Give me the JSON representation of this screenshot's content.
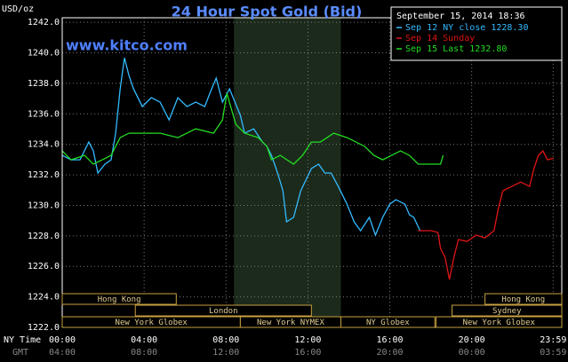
{
  "chart_data": {
    "type": "line",
    "title": "24 Hour Spot Gold (Bid)",
    "y_unit": "USD/oz",
    "watermark": "www.kitco.com",
    "timestamp": "September 15, 2014 18:36",
    "x_axis_label": "NY Time",
    "x2_axis_label": "GMT",
    "xlim": [
      0,
      24.4
    ],
    "ylim": [
      1222,
      1242.3
    ],
    "xticks": [
      {
        "value": 0,
        "label": "00:00"
      },
      {
        "value": 4,
        "label": "04:00"
      },
      {
        "value": 8,
        "label": "08:00"
      },
      {
        "value": 12,
        "label": "12:00"
      },
      {
        "value": 16,
        "label": "16:00"
      },
      {
        "value": 20,
        "label": "20:00"
      },
      {
        "value": 23.98,
        "label": "23:59"
      }
    ],
    "x2ticks": [
      "04:00",
      "08:00",
      "12:00",
      "16:00",
      "20:00",
      "00:00",
      "03:59"
    ],
    "yticks": [
      {
        "value": 1222,
        "label": "1222.0"
      },
      {
        "value": 1224,
        "label": "1224.0"
      },
      {
        "value": 1226,
        "label": "1226.0"
      },
      {
        "value": 1228,
        "label": "1228.0"
      },
      {
        "value": 1230,
        "label": "1230.0"
      },
      {
        "value": 1232,
        "label": "1232.0"
      },
      {
        "value": 1234,
        "label": "1234.0"
      },
      {
        "value": 1236,
        "label": "1236.0"
      },
      {
        "value": 1238,
        "label": "1238.0"
      },
      {
        "value": 1240,
        "label": "1240.0"
      },
      {
        "value": 1242,
        "label": "1242.0"
      }
    ],
    "grid": true,
    "shade": [
      8.39,
      13.61
    ],
    "sessions": [
      [
        {
          "label": "Hong Kong",
          "start": 0,
          "end": 5.57
        },
        {
          "label": "Hong Kong",
          "start": 20.65,
          "end": 24.4
        }
      ],
      [
        {
          "label": "London",
          "start": 3.57,
          "end": 12.17
        },
        {
          "label": "Sydney",
          "start": 19.04,
          "end": 24.4
        }
      ],
      [
        {
          "label": "New York Globex",
          "start": 0,
          "end": 8.7
        },
        {
          "label": "New York NYMEX",
          "start": 8.7,
          "end": 13.61
        },
        {
          "label": "NY Globex",
          "start": 13.61,
          "end": 18.2
        },
        {
          "label": "New York Globex",
          "start": 18.26,
          "end": 24.4
        }
      ]
    ],
    "series": [
      {
        "name": "Sep 12 NY close 1228.30",
        "color": "#33bbff",
        "x": [
          0,
          0.43,
          0.87,
          1.3,
          1.52,
          1.74,
          2.09,
          2.39,
          2.61,
          2.83,
          3.04,
          3.26,
          3.48,
          3.91,
          4.35,
          4.78,
          5.22,
          5.65,
          6.09,
          6.52,
          6.96,
          7.3,
          7.52,
          7.83,
          8.17,
          8.35,
          8.7,
          8.91,
          9.35,
          9.78,
          10.0,
          10.22,
          10.52,
          10.78,
          10.96,
          11.3,
          11.65,
          11.96,
          12.17,
          12.52,
          12.83,
          13.13,
          13.48,
          13.91,
          14.26,
          14.57,
          15.0,
          15.3,
          15.65,
          16.0,
          16.3,
          16.74,
          16.96,
          17.17,
          17.48
        ],
        "values": [
          1233.28,
          1232.99,
          1232.99,
          1234.15,
          1233.57,
          1232.12,
          1232.7,
          1232.99,
          1234.73,
          1237.64,
          1239.67,
          1238.51,
          1237.64,
          1236.48,
          1237.06,
          1236.77,
          1235.6,
          1237.06,
          1236.48,
          1236.77,
          1236.48,
          1237.64,
          1238.34,
          1236.77,
          1237.64,
          1237.06,
          1235.9,
          1234.73,
          1235.02,
          1234.15,
          1233.86,
          1233.28,
          1232.12,
          1230.95,
          1228.92,
          1229.21,
          1230.95,
          1231.83,
          1232.41,
          1232.7,
          1232.12,
          1232.12,
          1231.24,
          1230.08,
          1228.92,
          1228.34,
          1229.21,
          1228.05,
          1229.21,
          1230.08,
          1230.37,
          1230.08,
          1229.38,
          1229.21,
          1228.34
        ]
      },
      {
        "name": "Sep 14 Sunday",
        "color": "#e01515",
        "x": [
          17.39,
          18.04,
          18.35,
          18.48,
          18.7,
          18.91,
          19.13,
          19.35,
          19.78,
          20.22,
          20.65,
          21.09,
          21.3,
          21.52,
          21.96,
          22.39,
          22.83,
          23.04,
          23.26,
          23.48,
          23.7,
          24.0
        ],
        "values": [
          1228.34,
          1228.34,
          1228.22,
          1227.17,
          1226.59,
          1225.14,
          1226.59,
          1227.76,
          1227.64,
          1228.05,
          1227.87,
          1228.34,
          1229.79,
          1230.95,
          1231.24,
          1231.53,
          1231.24,
          1232.41,
          1233.28,
          1233.57,
          1232.99,
          1233.1
        ]
      },
      {
        "name": "Sep 15 Last 1232.80",
        "color": "#22dd22",
        "x": [
          0,
          0.43,
          1.09,
          1.52,
          1.96,
          2.39,
          2.83,
          3.26,
          3.91,
          4.78,
          5.65,
          6.52,
          7.39,
          7.83,
          8.04,
          8.48,
          8.91,
          9.57,
          10.0,
          10.22,
          10.65,
          11.3,
          11.74,
          12.17,
          12.61,
          13.26,
          13.91,
          14.35,
          14.78,
          15.22,
          15.65,
          16.09,
          16.52,
          16.96,
          17.39,
          18.26,
          18.48,
          18.61
        ],
        "values": [
          1233.57,
          1232.99,
          1233.28,
          1232.7,
          1232.99,
          1233.28,
          1234.44,
          1234.73,
          1234.73,
          1234.73,
          1234.44,
          1235.02,
          1234.73,
          1235.6,
          1237.35,
          1235.31,
          1234.73,
          1234.44,
          1233.86,
          1232.99,
          1233.28,
          1232.7,
          1233.28,
          1234.15,
          1234.15,
          1234.73,
          1234.44,
          1234.15,
          1233.86,
          1233.28,
          1232.99,
          1233.28,
          1233.57,
          1233.28,
          1232.7,
          1232.7,
          1232.7,
          1233.28
        ]
      }
    ]
  }
}
